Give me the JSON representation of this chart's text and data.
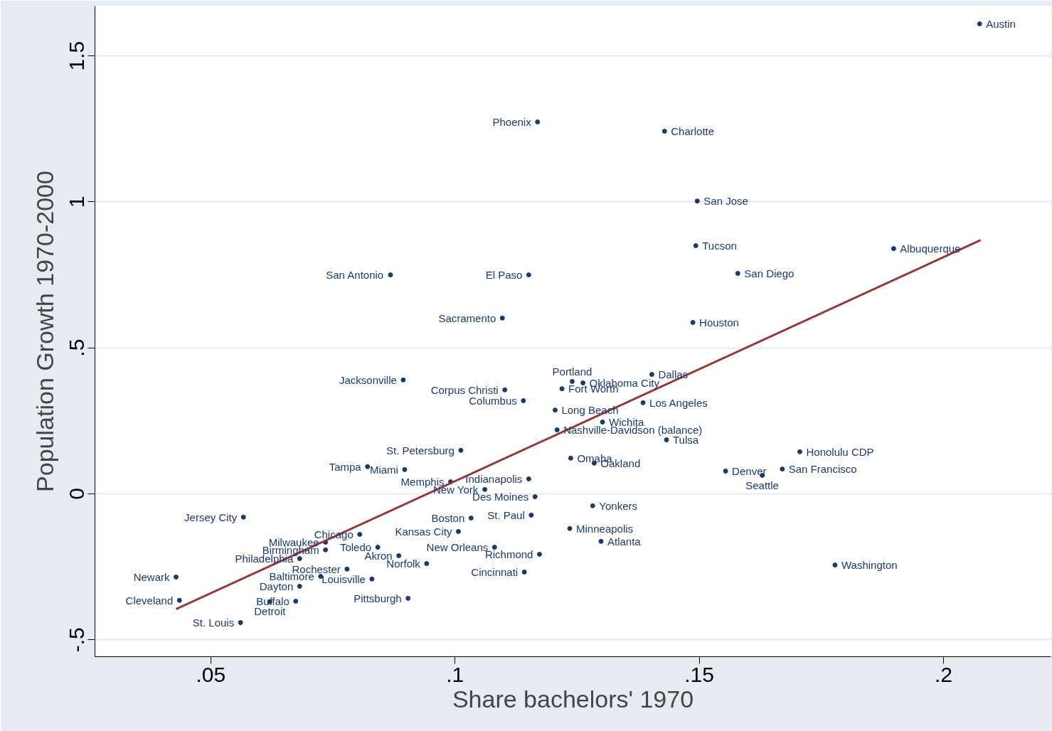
{
  "chart_data": {
    "type": "scatter",
    "xlabel": "Share bachelors' 1970",
    "ylabel": "Population Growth 1970-2000",
    "xlim": [
      0.0263,
      0.222
    ],
    "ylim": [
      -0.558,
      1.671
    ],
    "xticks": [
      {
        "value": 0.05,
        "label": ".05"
      },
      {
        "value": 0.1,
        "label": ".1"
      },
      {
        "value": 0.15,
        "label": ".15"
      },
      {
        "value": 0.2,
        "label": ".2"
      }
    ],
    "yticks": [
      {
        "value": -0.5,
        "label": "-.5"
      },
      0,
      {
        "value": 0.5,
        "label": ".5"
      },
      1,
      {
        "value": 1.5,
        "label": "1.5"
      }
    ],
    "grid": "y",
    "series": [
      {
        "color": "#1a3a6b",
        "marker": "circle",
        "x": [
          0.2074,
          0.1169,
          0.1429,
          0.1496,
          0.1493,
          0.1898,
          0.0868,
          0.1151,
          0.1579,
          0.1097,
          0.1487,
          0.0894,
          0.1403,
          0.124,
          0.1262,
          0.1102,
          0.1219,
          0.114,
          0.1205,
          0.1385,
          0.1302,
          0.1209,
          0.1433,
          0.1012,
          0.1706,
          0.1237,
          0.1285,
          0.0821,
          0.0897,
          0.1554,
          0.167,
          0.1629,
          0.0991,
          0.1151,
          0.1061,
          0.1164,
          0.1282,
          0.0567,
          0.1033,
          0.1156,
          0.1235,
          0.0805,
          0.1007,
          0.1299,
          0.0735,
          0.0842,
          0.1081,
          0.0735,
          0.1173,
          0.0885,
          0.0682,
          0.0942,
          0.1778,
          0.0779,
          0.1142,
          0.0429,
          0.0725,
          0.083,
          0.0682,
          0.0904,
          0.0436,
          0.0621,
          0.0674,
          0.0561
        ],
        "values": [
          1.61,
          1.274,
          1.242,
          1.003,
          0.85,
          0.84,
          0.75,
          0.75,
          0.755,
          0.602,
          0.587,
          0.39,
          0.409,
          0.385,
          0.38,
          0.356,
          0.36,
          0.319,
          0.287,
          0.312,
          0.246,
          0.219,
          0.185,
          0.149,
          0.144,
          0.122,
          0.105,
          0.093,
          0.083,
          0.078,
          0.085,
          0.063,
          0.041,
          0.051,
          0.015,
          -0.01,
          -0.041,
          -0.08,
          -0.083,
          -0.073,
          -0.119,
          -0.139,
          -0.129,
          -0.163,
          -0.166,
          -0.183,
          -0.183,
          -0.192,
          -0.207,
          -0.212,
          -0.222,
          -0.239,
          -0.244,
          -0.258,
          -0.268,
          -0.285,
          -0.283,
          -0.292,
          -0.317,
          -0.358,
          -0.365,
          -0.37,
          -0.368,
          -0.441
        ],
        "value_labels": [
          "Austin",
          "Phoenix",
          "Charlotte",
          "San Jose",
          "Tucson",
          "Albuquerque",
          "San Antonio",
          "El Paso",
          "San Diego",
          "Sacramento",
          "Houston",
          "Jacksonville",
          "Dallas",
          "Portland",
          "Oklahoma City",
          "Corpus Christi",
          "Fort Worth",
          "Columbus",
          "Long Beach",
          "Los Angeles",
          "Wichita",
          "Nashville-Davidson (balance)",
          "Tulsa",
          "St. Petersburg",
          "Honolulu CDP",
          "Omaha",
          "Oakland",
          "Tampa",
          "Miami",
          "Denver",
          "San Francisco",
          "Seattle",
          "Memphis",
          "Indianapolis",
          "New York",
          "Des Moines",
          "Yonkers",
          "Jersey City",
          "Boston",
          "St. Paul",
          "Minneapolis",
          "Chicago",
          "Kansas City",
          "Atlanta",
          "Milwaukee",
          "Toledo",
          "New Orleans",
          "Birmingham",
          "Richmond",
          "Akron",
          "Philadelphia",
          "Norfolk",
          "Washington",
          "Rochester",
          "Cincinnati",
          "Newark",
          "Baltimore",
          "Louisville",
          "Dayton",
          "Pittsburgh",
          "Cleveland",
          "Detroit",
          "Buffalo",
          "St. Louis"
        ]
      },
      {
        "type": "line",
        "color": "#943838",
        "x": [
          0.0429,
          0.2076
        ],
        "values": [
          -0.395,
          0.869
        ]
      }
    ]
  }
}
